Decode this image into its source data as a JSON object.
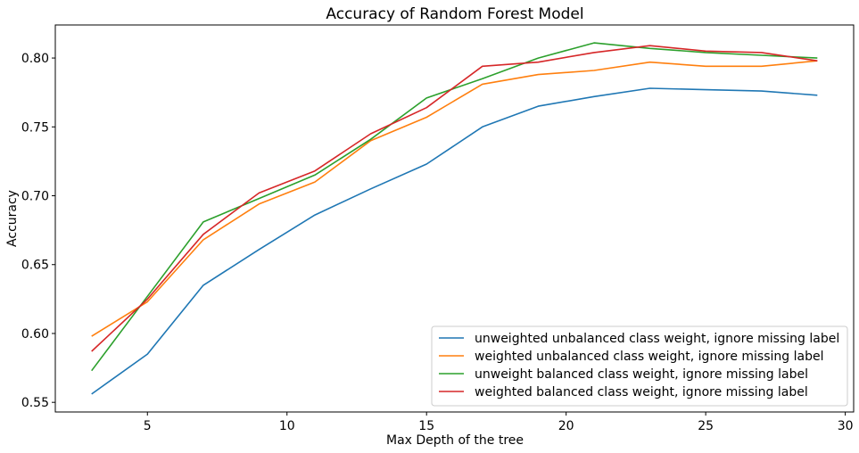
{
  "chart_data": {
    "type": "line",
    "title": "Accuracy of Random Forest Model",
    "xlabel": "Max Depth of the tree",
    "ylabel": "Accuracy",
    "xlim": [
      1.7,
      30.3
    ],
    "ylim": [
      0.543,
      0.824
    ],
    "xticks": [
      5,
      10,
      15,
      20,
      25,
      30
    ],
    "yticks": [
      0.55,
      0.6,
      0.65,
      0.7,
      0.75,
      0.8
    ],
    "xtick_labels": [
      "5",
      "10",
      "15",
      "20",
      "25",
      "30"
    ],
    "ytick_labels": [
      "0.55",
      "0.60",
      "0.65",
      "0.70",
      "0.75",
      "0.80"
    ],
    "grid": false,
    "legend_position": "lower-right",
    "x": [
      3,
      5,
      7,
      9,
      11,
      13,
      15,
      17,
      19,
      21,
      23,
      25,
      27,
      29
    ],
    "series": [
      {
        "name": "unweighted unbalanced class weight, ignore missing label",
        "color": "#1f77b4",
        "values": [
          0.556,
          0.585,
          0.635,
          0.661,
          0.686,
          0.705,
          0.723,
          0.75,
          0.765,
          0.772,
          0.778,
          0.777,
          0.776,
          0.773
        ]
      },
      {
        "name": "weighted unbalanced class weight, ignore missing label",
        "color": "#ff7f0e",
        "values": [
          0.598,
          0.623,
          0.668,
          0.694,
          0.71,
          0.74,
          0.757,
          0.781,
          0.788,
          0.791,
          0.797,
          0.794,
          0.794,
          0.798
        ]
      },
      {
        "name": "unweight balanced class weight, ignore missing label",
        "color": "#2ca02c",
        "values": [
          0.573,
          0.627,
          0.681,
          0.698,
          0.715,
          0.741,
          0.771,
          0.785,
          0.8,
          0.811,
          0.807,
          0.804,
          0.802,
          0.8
        ]
      },
      {
        "name": "weighted balanced class weight, ignore missing label",
        "color": "#d62728",
        "values": [
          0.587,
          0.625,
          0.672,
          0.702,
          0.718,
          0.745,
          0.764,
          0.794,
          0.797,
          0.804,
          0.809,
          0.805,
          0.804,
          0.798
        ]
      }
    ]
  }
}
